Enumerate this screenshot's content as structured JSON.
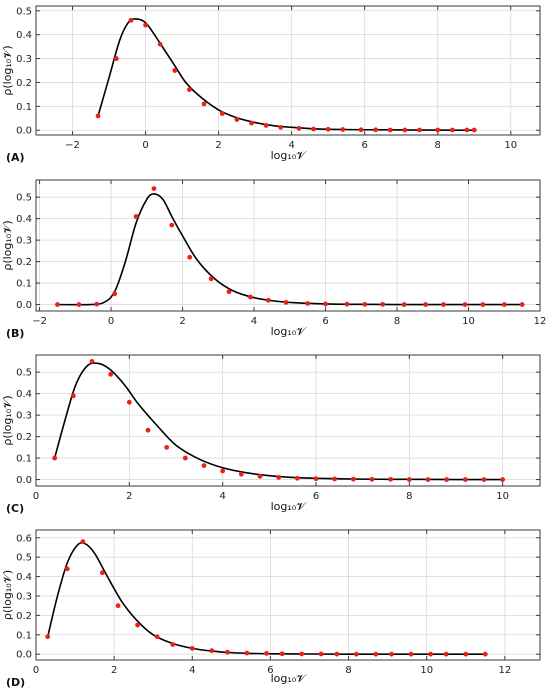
{
  "figure": {
    "colors": {
      "curve": "#000000",
      "points": "#e8221a",
      "grid": "#d9d9d9",
      "frame": "#3a3a3a"
    }
  },
  "chart_data": [
    {
      "panel": "(A)",
      "type": "line",
      "xlabel": "log₁₀𝓥",
      "ylabel": "ρ(log₁₀𝓥)",
      "xlim": [
        -3,
        10.8
      ],
      "ylim": [
        -0.02,
        0.52
      ],
      "xticks": [
        -2,
        0,
        2,
        4,
        6,
        8,
        10
      ],
      "yticks": [
        0.0,
        0.1,
        0.2,
        0.3,
        0.4,
        0.5
      ],
      "grid": true,
      "series": [
        {
          "type": "scatter",
          "x": [
            -1.3,
            -0.8,
            -0.4,
            0.0,
            0.4,
            0.8,
            1.2,
            1.6,
            2.1,
            2.5,
            2.9,
            3.3,
            3.7,
            4.2,
            4.6,
            5.0,
            5.4,
            5.9,
            6.3,
            6.7,
            7.1,
            7.5,
            8.0,
            8.4,
            8.8,
            9.0
          ],
          "y": [
            0.06,
            0.3,
            0.46,
            0.44,
            0.36,
            0.25,
            0.17,
            0.11,
            0.07,
            0.045,
            0.03,
            0.02,
            0.012,
            0.008,
            0.005,
            0.004,
            0.003,
            0.002,
            0.002,
            0.001,
            0.001,
            0.001,
            0.001,
            0.001,
            0.001,
            0.001
          ]
        },
        {
          "type": "line",
          "x": [
            -1.3,
            -1.0,
            -0.7,
            -0.45,
            -0.2,
            0.0,
            0.2,
            0.5,
            0.8,
            1.1,
            1.5,
            2.0,
            2.5,
            3.0,
            3.5,
            4.0,
            4.5,
            5.0,
            6.0,
            7.0,
            8.0,
            9.0
          ],
          "y": [
            0.06,
            0.22,
            0.38,
            0.455,
            0.465,
            0.45,
            0.41,
            0.34,
            0.27,
            0.2,
            0.14,
            0.085,
            0.052,
            0.032,
            0.019,
            0.012,
            0.007,
            0.004,
            0.002,
            0.001,
            0.0005,
            0.0
          ]
        }
      ]
    },
    {
      "panel": "(B)",
      "type": "line",
      "xlabel": "log₁₀𝓥",
      "ylabel": "ρ(log₁₀𝓥)",
      "xlim": [
        -2.1,
        12.0
      ],
      "ylim": [
        -0.03,
        0.58
      ],
      "xticks": [
        -2,
        0,
        2,
        4,
        6,
        8,
        10,
        12
      ],
      "yticks": [
        0.0,
        0.1,
        0.2,
        0.3,
        0.4,
        0.5
      ],
      "grid": true,
      "series": [
        {
          "type": "scatter",
          "x": [
            -1.5,
            -0.9,
            -0.4,
            0.1,
            0.7,
            1.2,
            1.7,
            2.2,
            2.8,
            3.3,
            3.9,
            4.4,
            4.9,
            5.5,
            6.0,
            6.6,
            7.1,
            7.6,
            8.2,
            8.8,
            9.3,
            9.9,
            10.4,
            11.0,
            11.5
          ],
          "y": [
            0.0,
            0.0,
            0.002,
            0.05,
            0.41,
            0.54,
            0.37,
            0.22,
            0.12,
            0.06,
            0.035,
            0.02,
            0.01,
            0.005,
            0.003,
            0.002,
            0.001,
            0.001,
            0.0,
            0.0,
            0.0,
            0.0,
            0.0,
            0.0,
            0.0
          ]
        },
        {
          "type": "line",
          "x": [
            -1.5,
            -0.6,
            -0.2,
            0.1,
            0.4,
            0.7,
            1.0,
            1.2,
            1.45,
            1.7,
            2.0,
            2.4,
            2.9,
            3.4,
            4.0,
            4.6,
            5.2,
            6.0,
            7.0,
            8.0,
            9.0,
            10.0,
            11.5
          ],
          "y": [
            0.0,
            0.0,
            0.01,
            0.06,
            0.2,
            0.38,
            0.49,
            0.515,
            0.49,
            0.41,
            0.32,
            0.21,
            0.12,
            0.065,
            0.032,
            0.016,
            0.008,
            0.003,
            0.001,
            0.0,
            0.0,
            0.0,
            0.0
          ]
        }
      ]
    },
    {
      "panel": "(C)",
      "type": "line",
      "xlabel": "log₁₀𝓥",
      "ylabel": "ρ(log₁₀𝓥)",
      "xlim": [
        0,
        10.8
      ],
      "ylim": [
        -0.03,
        0.58
      ],
      "xticks": [
        0,
        2,
        4,
        6,
        8,
        10
      ],
      "yticks": [
        0.0,
        0.1,
        0.2,
        0.3,
        0.4,
        0.5
      ],
      "grid": true,
      "series": [
        {
          "type": "scatter",
          "x": [
            0.4,
            0.8,
            1.2,
            1.6,
            2.0,
            2.4,
            2.8,
            3.2,
            3.6,
            4.0,
            4.4,
            4.8,
            5.2,
            5.6,
            6.0,
            6.4,
            6.8,
            7.2,
            7.6,
            8.0,
            8.4,
            8.8,
            9.2,
            9.6,
            10.0
          ],
          "y": [
            0.1,
            0.39,
            0.55,
            0.49,
            0.36,
            0.23,
            0.15,
            0.1,
            0.065,
            0.04,
            0.025,
            0.015,
            0.01,
            0.006,
            0.004,
            0.003,
            0.002,
            0.001,
            0.001,
            0.0,
            0.0,
            0.0,
            0.0,
            0.0,
            0.0
          ]
        },
        {
          "type": "line",
          "x": [
            0.4,
            0.6,
            0.85,
            1.1,
            1.35,
            1.6,
            1.9,
            2.2,
            2.6,
            3.0,
            3.5,
            4.0,
            4.5,
            5.0,
            5.5,
            6.0,
            7.0,
            8.0,
            9.0,
            10.0
          ],
          "y": [
            0.1,
            0.26,
            0.44,
            0.53,
            0.54,
            0.51,
            0.44,
            0.35,
            0.25,
            0.16,
            0.095,
            0.055,
            0.032,
            0.018,
            0.01,
            0.006,
            0.002,
            0.001,
            0.0,
            0.0
          ]
        }
      ]
    },
    {
      "panel": "(D)",
      "type": "line",
      "xlabel": "log₁₀𝓥",
      "ylabel": "ρ(log₁₀𝓥)",
      "xlim": [
        0,
        12.9
      ],
      "ylim": [
        -0.03,
        0.64
      ],
      "xticks": [
        0,
        2,
        4,
        6,
        8,
        10,
        12
      ],
      "yticks": [
        0.0,
        0.1,
        0.2,
        0.3,
        0.4,
        0.5,
        0.6
      ],
      "grid": true,
      "series": [
        {
          "type": "scatter",
          "x": [
            0.3,
            0.8,
            1.2,
            1.7,
            2.1,
            2.6,
            3.1,
            3.5,
            4.0,
            4.5,
            4.9,
            5.4,
            5.9,
            6.3,
            6.8,
            7.3,
            7.7,
            8.2,
            8.7,
            9.1,
            9.6,
            10.1,
            10.5,
            11.0,
            11.5
          ],
          "y": [
            0.09,
            0.44,
            0.58,
            0.42,
            0.25,
            0.15,
            0.09,
            0.05,
            0.03,
            0.018,
            0.01,
            0.006,
            0.004,
            0.002,
            0.001,
            0.001,
            0.0,
            0.0,
            0.0,
            0.0,
            0.0,
            0.0,
            0.0,
            0.0,
            0.0
          ]
        },
        {
          "type": "line",
          "x": [
            0.3,
            0.55,
            0.8,
            1.05,
            1.25,
            1.5,
            1.8,
            2.2,
            2.6,
            3.0,
            3.5,
            4.0,
            4.5,
            5.0,
            5.5,
            6.0,
            7.0,
            8.0,
            9.0,
            10.0,
            11.5
          ],
          "y": [
            0.09,
            0.3,
            0.47,
            0.56,
            0.57,
            0.52,
            0.41,
            0.27,
            0.17,
            0.1,
            0.055,
            0.03,
            0.016,
            0.008,
            0.004,
            0.002,
            0.001,
            0.0,
            0.0,
            0.0,
            0.0
          ]
        }
      ]
    }
  ]
}
